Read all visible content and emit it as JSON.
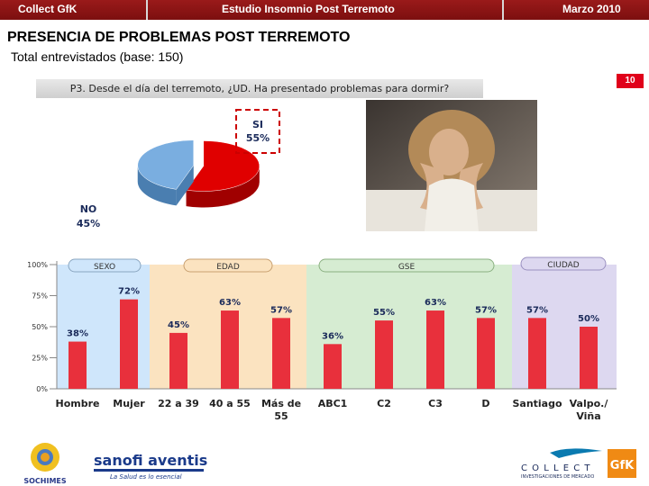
{
  "header": {
    "left": "Collect GfK",
    "center": "Estudio Insomnio Post Terremoto",
    "right": "Marzo 2010"
  },
  "title": "PRESENCIA DE PROBLEMAS POST TERREMOTO",
  "subtitle": "Total entrevistados (base: 150)",
  "page_number": "10",
  "question": "P3. Desde el día del terremoto, ¿UD. Ha presentado  problemas para dormir?",
  "colors": {
    "header_bg": "#8b1414",
    "bar": "#e8303c",
    "pie_si": "#e00000",
    "pie_no": "#7aaee0",
    "sexo_panel": "#cfe6fb",
    "edad_panel": "#fbe3c0",
    "gse_panel": "#d6ecd2",
    "ciudad_panel": "#ddd8f0"
  },
  "pie_labels": {
    "si_name": "SI",
    "si_value": "55%",
    "no_name": "NO",
    "no_value": "45%"
  },
  "groups": {
    "sexo": "SEXO",
    "edad": "EDAD",
    "gse": "GSE",
    "ciudad": "CIUDAD"
  },
  "logos": {
    "sochimes": "SOCHIMES",
    "sanofi": "sanofi aventis",
    "sanofi_tagline": "La Salud es lo esencial",
    "collect": "C O L L E C T",
    "collect_sub": "INVESTIGACIONES DE MERCADO",
    "gfk": "GfK"
  },
  "chart_data": [
    {
      "type": "pie",
      "title": "",
      "labels": [
        "SI",
        "NO"
      ],
      "values": [
        55,
        45
      ]
    },
    {
      "type": "bar",
      "title": "",
      "categories": [
        "Hombre",
        "Mujer",
        "22 a 39",
        "40 a 55",
        "Más de 55",
        "ABC1",
        "C2",
        "C3",
        "D",
        "Santiago",
        "Valpo./ Viña"
      ],
      "category_lines": [
        [
          "Hombre"
        ],
        [
          "Mujer"
        ],
        [
          "22 a 39"
        ],
        [
          "40 a 55"
        ],
        [
          "Más de",
          "55"
        ],
        [
          "ABC1"
        ],
        [
          "C2"
        ],
        [
          "C3"
        ],
        [
          "D"
        ],
        [
          "Santiago"
        ],
        [
          "Valpo./",
          "Viña"
        ]
      ],
      "values": [
        38,
        72,
        45,
        63,
        57,
        36,
        55,
        63,
        57,
        57,
        50
      ],
      "value_labels": [
        "38%",
        "72%",
        "45%",
        "63%",
        "57%",
        "36%",
        "55%",
        "63%",
        "57%",
        "57%",
        "50%"
      ],
      "ylim": [
        0,
        100
      ],
      "yticks": [
        0,
        25,
        50,
        75,
        100
      ],
      "ytick_labels": [
        "0%",
        "25%",
        "50%",
        "75%",
        "100%"
      ],
      "xlabel": "",
      "ylabel": ""
    }
  ]
}
